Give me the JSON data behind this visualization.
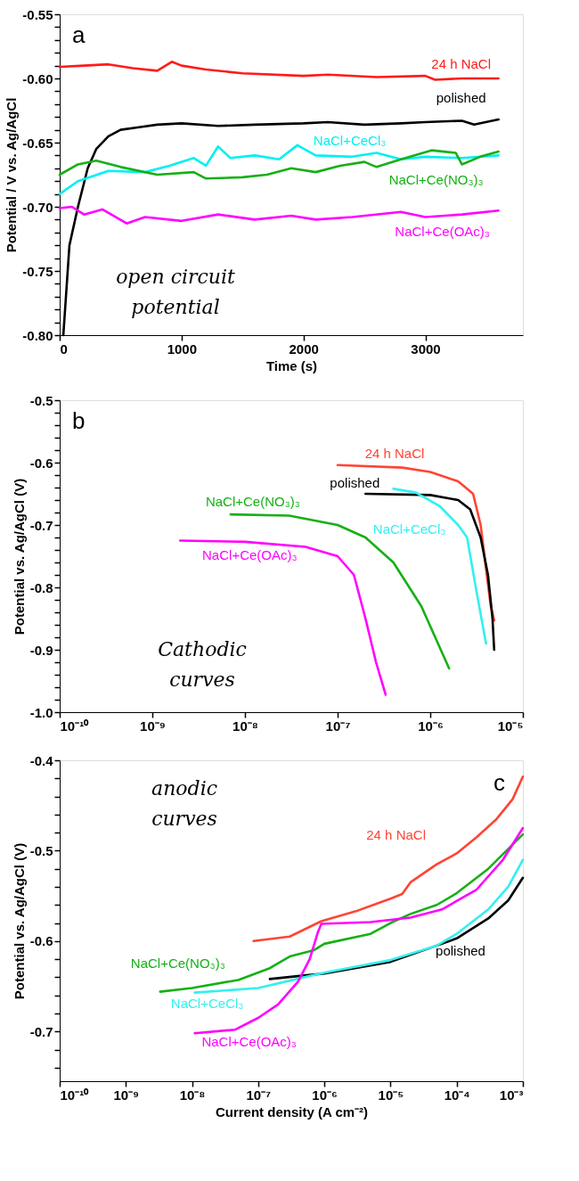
{
  "chart_data": [
    {
      "type": "line",
      "xlabel": "Time (s)",
      "ylabel": "Potential / V vs. Ag/AgCl",
      "xlim": [
        0,
        3800
      ],
      "xticks": [
        0,
        1000,
        2000,
        3000
      ],
      "ylim": [
        -0.8,
        -0.55
      ],
      "yticks": [
        {
          "value": -0.8,
          "label": "-0.80"
        },
        {
          "value": -0.79,
          "label": null
        },
        {
          "value": -0.78,
          "label": null
        },
        {
          "value": -0.77,
          "label": null
        },
        {
          "value": -0.76,
          "label": null
        },
        -0.75,
        {
          "value": -0.74,
          "label": null
        },
        {
          "value": -0.73,
          "label": null
        },
        {
          "value": -0.72,
          "label": null
        },
        {
          "value": -0.71,
          "label": null
        },
        {
          "value": -0.7,
          "label": "-0.70"
        },
        {
          "value": -0.69,
          "label": null
        },
        {
          "value": -0.68,
          "label": null
        },
        {
          "value": -0.67,
          "label": null
        },
        {
          "value": -0.66,
          "label": null
        },
        -0.65,
        {
          "value": -0.64,
          "label": null
        },
        {
          "value": -0.63,
          "label": null
        },
        {
          "value": -0.62,
          "label": null
        },
        {
          "value": -0.61,
          "label": null
        },
        {
          "value": -0.6,
          "label": "-0.60"
        },
        {
          "value": -0.59,
          "label": null
        },
        {
          "value": -0.58,
          "label": null
        },
        {
          "value": -0.57,
          "label": null
        },
        {
          "value": -0.56,
          "label": null
        },
        -0.55
      ],
      "annotations": [
        "a",
        "open circuit\npotential"
      ],
      "series": [
        {
          "name": "24 h NaCl",
          "color": "#ff1a1a",
          "x": [
            0,
            200,
            400,
            600,
            800,
            920,
            1000,
            1200,
            1500,
            2000,
            2200,
            2600,
            3000,
            3080,
            3300,
            3600
          ],
          "values": [
            -0.591,
            -0.59,
            -0.589,
            -0.592,
            -0.594,
            -0.587,
            -0.59,
            -0.593,
            -0.596,
            -0.598,
            -0.597,
            -0.599,
            -0.598,
            -0.601,
            -0.6,
            -0.6
          ]
        },
        {
          "name": "polished",
          "color": "#000000",
          "x": [
            30,
            80,
            150,
            230,
            300,
            400,
            500,
            650,
            800,
            1000,
            1300,
            1600,
            2000,
            2200,
            2500,
            2800,
            3000,
            3300,
            3400,
            3600
          ],
          "values": [
            -0.8,
            -0.73,
            -0.7,
            -0.67,
            -0.655,
            -0.645,
            -0.64,
            -0.638,
            -0.636,
            -0.635,
            -0.637,
            -0.636,
            -0.635,
            -0.634,
            -0.636,
            -0.635,
            -0.634,
            -0.633,
            -0.636,
            -0.632
          ]
        },
        {
          "name": "NaCl+CeCl₃",
          "color": "#00f0f0",
          "x": [
            0,
            150,
            400,
            700,
            900,
            1100,
            1200,
            1300,
            1400,
            1600,
            1800,
            1950,
            2100,
            2400,
            2600,
            2800,
            3000,
            3300,
            3600
          ],
          "values": [
            -0.69,
            -0.68,
            -0.672,
            -0.673,
            -0.668,
            -0.662,
            -0.668,
            -0.653,
            -0.662,
            -0.66,
            -0.663,
            -0.652,
            -0.66,
            -0.661,
            -0.658,
            -0.663,
            -0.661,
            -0.662,
            -0.66
          ]
        },
        {
          "name": "NaCl+Ce(NO₃)₃",
          "color": "#16b016",
          "x": [
            0,
            150,
            300,
            500,
            800,
            1100,
            1200,
            1500,
            1700,
            1900,
            2100,
            2300,
            2500,
            2600,
            2800,
            3050,
            3250,
            3300,
            3450,
            3600
          ],
          "values": [
            -0.675,
            -0.667,
            -0.664,
            -0.669,
            -0.675,
            -0.673,
            -0.678,
            -0.677,
            -0.675,
            -0.67,
            -0.673,
            -0.668,
            -0.665,
            -0.669,
            -0.663,
            -0.656,
            -0.658,
            -0.667,
            -0.661,
            -0.657
          ]
        },
        {
          "name": "NaCl+Ce(OAc)₃",
          "color": "#ff00ff",
          "x": [
            0,
            100,
            200,
            350,
            550,
            700,
            1000,
            1300,
            1600,
            1900,
            2100,
            2400,
            2800,
            3000,
            3300,
            3600
          ],
          "values": [
            -0.701,
            -0.7,
            -0.706,
            -0.702,
            -0.713,
            -0.708,
            -0.711,
            -0.706,
            -0.71,
            -0.707,
            -0.71,
            -0.708,
            -0.704,
            -0.708,
            -0.706,
            -0.703
          ]
        }
      ]
    },
    {
      "type": "line",
      "ylabel": "Potential vs. Ag/AgCl (V)",
      "log": "x",
      "xlim": [
        1e-10,
        1e-05
      ],
      "xticks": [
        {
          "value": 1e-10,
          "label": "10⁻¹⁰"
        },
        {
          "value": 1e-09,
          "label": "10⁻⁹"
        },
        {
          "value": 1e-08,
          "label": "10⁻⁸"
        },
        {
          "value": 1e-07,
          "label": "10⁻⁷"
        },
        {
          "value": 1e-06,
          "label": "10⁻⁶"
        },
        {
          "value": 1e-05,
          "label": "10⁻⁵"
        }
      ],
      "ylim": [
        -1.0,
        -0.5
      ],
      "yticks": [
        {
          "value": -1.0,
          "label": "-1.0"
        },
        {
          "value": -0.98,
          "label": null
        },
        {
          "value": -0.96,
          "label": null
        },
        {
          "value": -0.94,
          "label": null
        },
        {
          "value": -0.92,
          "label": null
        },
        -0.9,
        {
          "value": -0.88,
          "label": null
        },
        {
          "value": -0.86,
          "label": null
        },
        {
          "value": -0.84,
          "label": null
        },
        {
          "value": -0.82,
          "label": null
        },
        -0.8,
        {
          "value": -0.78,
          "label": null
        },
        {
          "value": -0.76,
          "label": null
        },
        {
          "value": -0.74,
          "label": null
        },
        {
          "value": -0.72,
          "label": null
        },
        -0.7,
        {
          "value": -0.68,
          "label": null
        },
        {
          "value": -0.66,
          "label": null
        },
        {
          "value": -0.64,
          "label": null
        },
        {
          "value": -0.62,
          "label": null
        },
        -0.6,
        {
          "value": -0.58,
          "label": null
        },
        {
          "value": -0.56,
          "label": null
        },
        {
          "value": -0.54,
          "label": null
        },
        {
          "value": -0.52,
          "label": null
        },
        -0.5
      ],
      "annotations": [
        "b",
        "Cathodic\ncurves"
      ],
      "series": [
        {
          "name": "24 h NaCl",
          "color": "#ff4433",
          "x": [
            1e-07,
            5e-07,
            1e-06,
            2e-06,
            2.9e-06,
            3.5e-06,
            4e-06,
            4.5e-06,
            4.9e-06
          ],
          "values": [
            -0.604,
            -0.608,
            -0.615,
            -0.63,
            -0.65,
            -0.7,
            -0.77,
            -0.83,
            -0.853
          ]
        },
        {
          "name": "polished",
          "color": "#000000",
          "x": [
            2e-07,
            1e-06,
            2e-06,
            2.7e-06,
            3.5e-06,
            4.2e-06,
            4.7e-06,
            4.9e-06
          ],
          "values": [
            -0.65,
            -0.652,
            -0.66,
            -0.675,
            -0.72,
            -0.78,
            -0.85,
            -0.9
          ]
        },
        {
          "name": "NaCl+CeCl₃",
          "color": "#33f0f0",
          "x": [
            4e-07,
            7e-07,
            1.27e-06,
            2e-06,
            2.5e-06,
            3.1e-06,
            4e-06
          ],
          "values": [
            -0.642,
            -0.648,
            -0.67,
            -0.7,
            -0.72,
            -0.8,
            -0.89
          ]
        },
        {
          "name": "NaCl+Ce(NO₃)₃",
          "color": "#16b016",
          "x": [
            7e-09,
            3e-08,
            1e-07,
            2e-07,
            4e-07,
            8e-07,
            1.6e-06
          ],
          "values": [
            -0.683,
            -0.685,
            -0.7,
            -0.72,
            -0.76,
            -0.83,
            -0.93
          ]
        },
        {
          "name": "NaCl+Ce(OAc)₃",
          "color": "#ff00ff",
          "x": [
            2e-09,
            1e-08,
            4.5e-08,
            1e-07,
            1.5e-07,
            2e-07,
            2.6e-07,
            3.3e-07
          ],
          "values": [
            -0.725,
            -0.727,
            -0.735,
            -0.75,
            -0.78,
            -0.85,
            -0.92,
            -0.972
          ]
        }
      ]
    },
    {
      "type": "line",
      "xlabel": "Current density  (A cm⁻²)",
      "ylabel": "Potential vs. Ag/AgCl (V)",
      "log": "x",
      "xlim": [
        1e-10,
        0.001
      ],
      "xticks": [
        {
          "value": 1e-10,
          "label": "10⁻¹⁰"
        },
        {
          "value": 1e-09,
          "label": "10⁻⁹"
        },
        {
          "value": 1e-08,
          "label": "10⁻⁸"
        },
        {
          "value": 1e-07,
          "label": "10⁻⁷"
        },
        {
          "value": 1e-06,
          "label": "10⁻⁶"
        },
        {
          "value": 1e-05,
          "label": "10⁻⁵"
        },
        {
          "value": 0.0001,
          "label": "10⁻⁴"
        },
        {
          "value": 0.001,
          "label": "10⁻³"
        }
      ],
      "ylim": [
        -0.755,
        -0.4
      ],
      "yticks": [
        {
          "value": -0.74,
          "label": null
        },
        {
          "value": -0.72,
          "label": null
        },
        -0.7,
        {
          "value": -0.68,
          "label": null
        },
        {
          "value": -0.66,
          "label": null
        },
        {
          "value": -0.64,
          "label": null
        },
        {
          "value": -0.62,
          "label": null
        },
        -0.6,
        {
          "value": -0.58,
          "label": null
        },
        {
          "value": -0.56,
          "label": null
        },
        {
          "value": -0.54,
          "label": null
        },
        {
          "value": -0.52,
          "label": null
        },
        -0.5,
        {
          "value": -0.48,
          "label": null
        },
        {
          "value": -0.46,
          "label": null
        },
        {
          "value": -0.44,
          "label": null
        },
        {
          "value": -0.42,
          "label": null
        },
        -0.4
      ],
      "annotations": [
        "c",
        "anodic\ncurves"
      ],
      "series": [
        {
          "name": "24 h NaCl",
          "color": "#ff4433",
          "x": [
            8.5e-08,
            3e-07,
            9e-07,
            3e-06,
            1e-05,
            1.5e-05,
            2e-05,
            5e-05,
            0.0001,
            0.0002,
            0.0004,
            0.0007,
            0.001
          ],
          "values": [
            -0.6,
            -0.595,
            -0.578,
            -0.567,
            -0.553,
            -0.548,
            -0.535,
            -0.515,
            -0.503,
            -0.485,
            -0.465,
            -0.443,
            -0.418
          ]
        },
        {
          "name": "polished",
          "color": "#000000",
          "x": [
            1.5e-07,
            5e-07,
            1e-06,
            1e-05,
            5e-05,
            0.0001,
            0.0003,
            0.0006,
            0.001
          ],
          "values": [
            -0.642,
            -0.638,
            -0.636,
            -0.623,
            -0.605,
            -0.597,
            -0.575,
            -0.555,
            -0.53
          ]
        },
        {
          "name": "NaCl+CeCl₃",
          "color": "#33f0f0",
          "x": [
            1.1e-08,
            1e-07,
            5e-07,
            1e-06,
            1e-05,
            5e-05,
            0.0001,
            0.0003,
            0.0006,
            0.001
          ],
          "values": [
            -0.657,
            -0.652,
            -0.64,
            -0.635,
            -0.621,
            -0.605,
            -0.592,
            -0.565,
            -0.54,
            -0.51
          ]
        },
        {
          "name": "NaCl+Ce(NO₃)₃",
          "color": "#16b016",
          "x": [
            3.3e-09,
            1e-08,
            5e-08,
            1.5e-07,
            3e-07,
            7e-07,
            1e-06,
            5e-06,
            1e-05,
            2e-05,
            5e-05,
            0.0001,
            0.0003,
            0.001
          ],
          "values": [
            -0.656,
            -0.652,
            -0.643,
            -0.63,
            -0.617,
            -0.61,
            -0.603,
            -0.592,
            -0.58,
            -0.57,
            -0.56,
            -0.547,
            -0.52,
            -0.482
          ]
        },
        {
          "name": "NaCl+Ce(OAc)₃",
          "color": "#ff00ff",
          "x": [
            1.1e-08,
            4.5e-08,
            1e-07,
            2e-07,
            4e-07,
            6e-07,
            8e-07,
            9e-07,
            5e-06,
            2e-05,
            6e-05,
            0.0002,
            0.0005,
            0.001
          ],
          "values": [
            -0.702,
            -0.698,
            -0.685,
            -0.67,
            -0.645,
            -0.62,
            -0.59,
            -0.581,
            -0.579,
            -0.574,
            -0.565,
            -0.543,
            -0.51,
            -0.475
          ]
        }
      ]
    }
  ]
}
